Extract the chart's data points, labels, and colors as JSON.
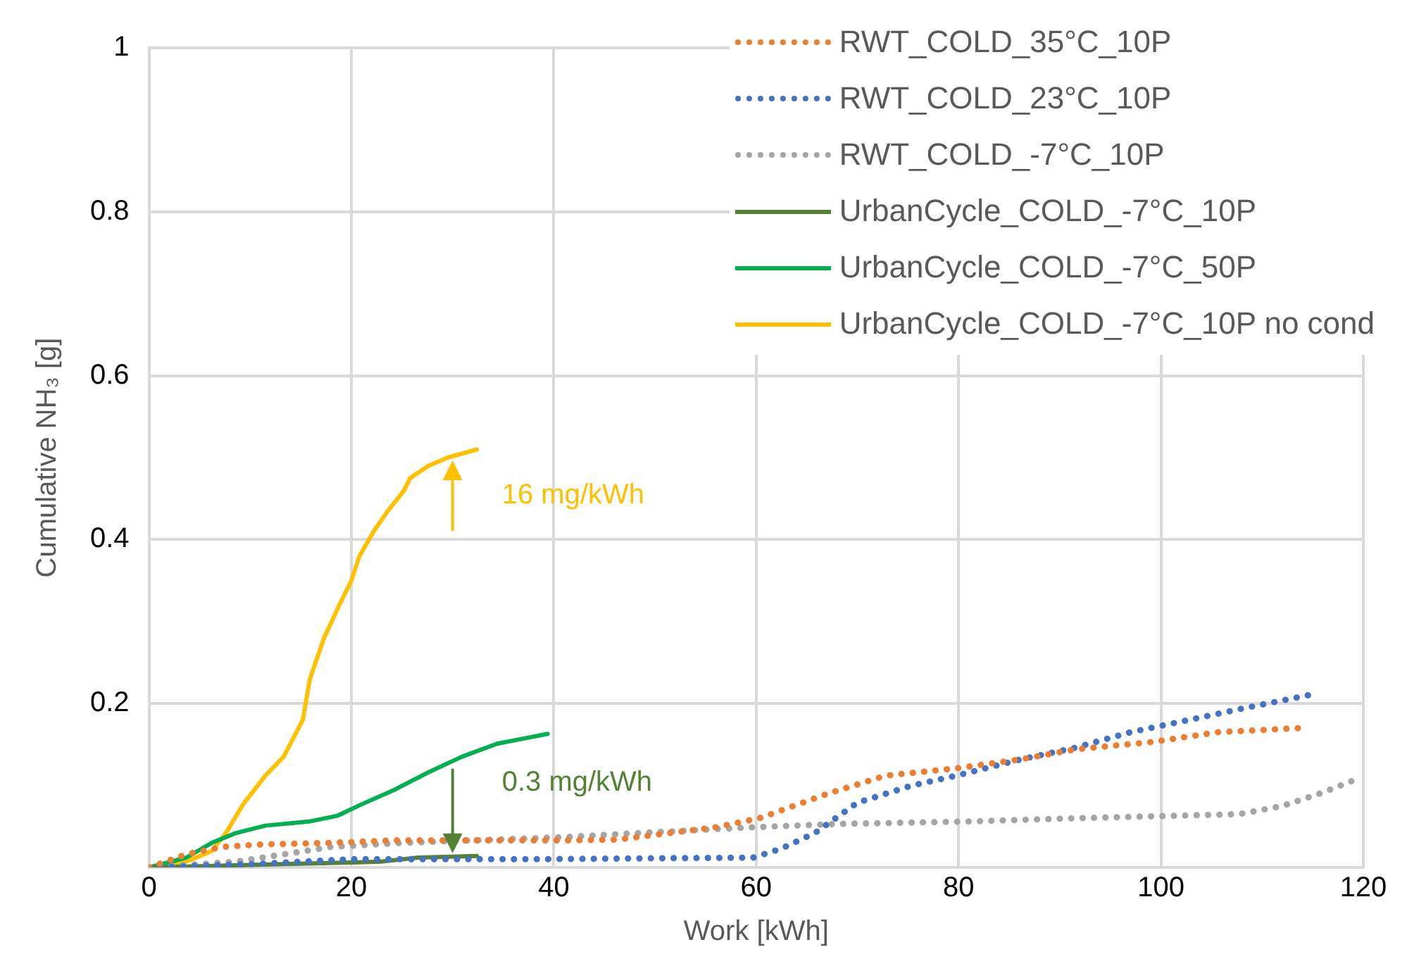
{
  "chart_data": {
    "type": "line",
    "xlabel": "Work [kWh]",
    "ylabel": "Cumulative NH₃ [g]",
    "xlim": [
      0,
      120
    ],
    "ylim": [
      0,
      1
    ],
    "xticks": [
      0,
      20,
      40,
      60,
      80,
      100,
      120
    ],
    "yticks": [
      {
        "value": 0,
        "label": null
      },
      0.2,
      0.4,
      0.6,
      0.8,
      1
    ],
    "grid": true,
    "legend": "top right",
    "marker": "none",
    "series": [
      {
        "name": "RWT_COLD_35°C_10P",
        "color": "#ed7d31",
        "line_style": "dotted",
        "x": [
          0,
          3.7,
          7.2,
          10.9,
          18,
          24.3,
          32.4,
          41,
          46.3,
          56,
          60.3,
          67.3,
          72.8,
          79.8,
          86.2,
          91.5,
          99.1,
          105.6,
          113.7
        ],
        "values": [
          0,
          0.016,
          0.025,
          0.028,
          0.03,
          0.033,
          0.033,
          0.033,
          0.034,
          0.049,
          0.06,
          0.091,
          0.112,
          0.121,
          0.132,
          0.144,
          0.153,
          0.165,
          0.17
        ]
      },
      {
        "name": "RWT_COLD_23°C_10P",
        "color": "#4472c4",
        "line_style": "dotted",
        "x": [
          0,
          10,
          20,
          32.4,
          37.7,
          59.7,
          62.5,
          65.8,
          70,
          75.4,
          79.8,
          86.2,
          91.5,
          97,
          102.4,
          107.7,
          115.3
        ],
        "values": [
          0,
          0.004,
          0.01,
          0.01,
          0.01,
          0.012,
          0.023,
          0.042,
          0.079,
          0.1,
          0.112,
          0.132,
          0.146,
          0.165,
          0.179,
          0.193,
          0.212
        ]
      },
      {
        "name": "RWT_COLD_-7°C_10P",
        "color": "#a5a5a5",
        "line_style": "dotted",
        "x": [
          0,
          8.6,
          13.3,
          18,
          25.2,
          41,
          48.4,
          59.7,
          67.9,
          80.8,
          91.5,
          107.7,
          112,
          115.9,
          119.6
        ],
        "values": [
          0,
          0.007,
          0.016,
          0.025,
          0.03,
          0.037,
          0.042,
          0.049,
          0.053,
          0.056,
          0.06,
          0.065,
          0.075,
          0.091,
          0.109
        ]
      },
      {
        "name": "UrbanCycle_COLD_-7°C_10P",
        "color": "#548235",
        "line_style": "solid",
        "x": [
          0,
          13.3,
          22.9,
          26.6,
          32.4
        ],
        "values": [
          0,
          0.004,
          0.007,
          0.012,
          0.014
        ]
      },
      {
        "name": "UrbanCycle_COLD_-7°C_50P",
        "color": "#00b050",
        "line_style": "solid",
        "x": [
          0,
          3.7,
          6.2,
          8.6,
          11.5,
          15.8,
          18.6,
          21,
          24.3,
          27.6,
          30.9,
          34.4,
          39.4
        ],
        "values": [
          0,
          0.012,
          0.03,
          0.042,
          0.051,
          0.056,
          0.063,
          0.077,
          0.095,
          0.116,
          0.135,
          0.151,
          0.163
        ]
      },
      {
        "name": "UrbanCycle_COLD_-7°C_10P no cond",
        "color": "#ffc000",
        "line_style": "solid",
        "x": [
          0,
          3.7,
          6.2,
          7.6,
          9.3,
          11.5,
          13.3,
          15.2,
          15.9,
          17.3,
          18.8,
          20,
          20.8,
          22.2,
          23.6,
          25.2,
          25.8,
          27.6,
          29.5,
          32.4
        ],
        "values": [
          0,
          0.007,
          0.02,
          0.042,
          0.077,
          0.112,
          0.135,
          0.18,
          0.23,
          0.28,
          0.32,
          0.35,
          0.38,
          0.41,
          0.435,
          0.46,
          0.475,
          0.49,
          0.5,
          0.51
        ]
      }
    ],
    "annotations": [
      {
        "text": "16 mg/kWh",
        "x": 30,
        "y": 0.5
      },
      {
        "text": "0.3 mg/kWh",
        "x": 30,
        "y": 0.014
      }
    ]
  }
}
